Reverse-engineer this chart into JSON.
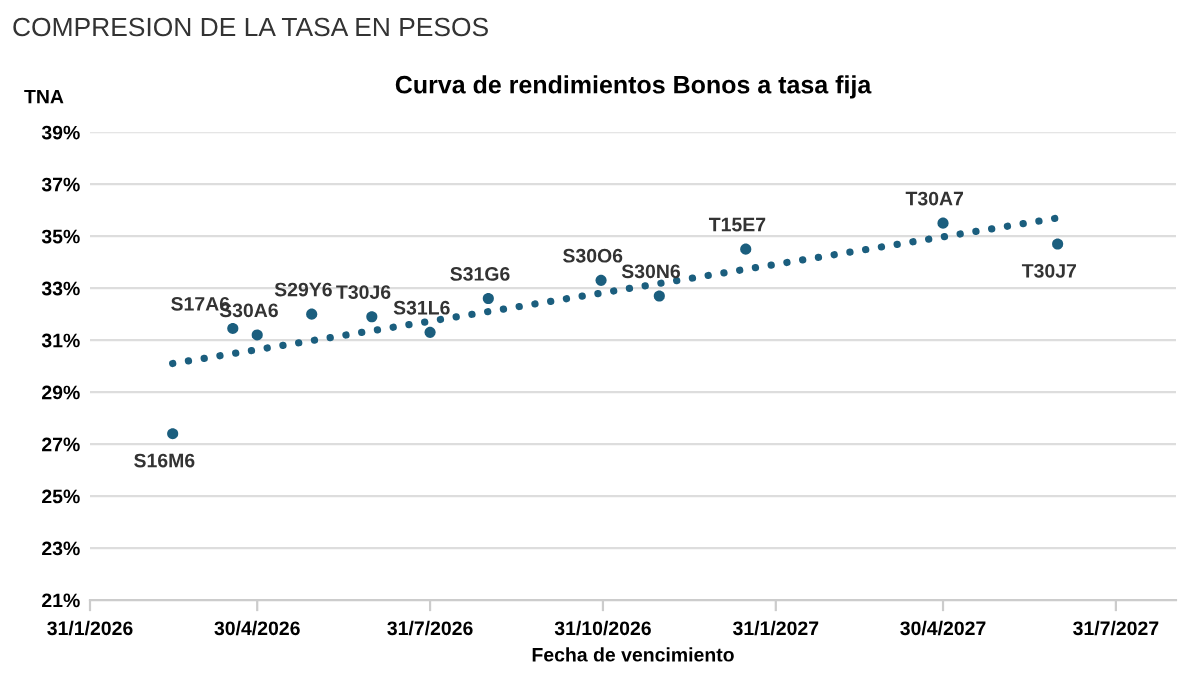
{
  "chart_data": {
    "type": "scatter",
    "title": "COMPRESION DE LA TASA EN PESOS",
    "subtitle": "Curva de rendimientos Bonos a tasa fija",
    "xlabel": "Fecha de vencimiento",
    "ylabel": "TNA",
    "series": [
      {
        "color": "#1b5e7e",
        "marker": "circle",
        "x": [
          "2026-03-16",
          "2026-04-17",
          "2026-04-30",
          "2026-05-29",
          "2026-06-30",
          "2026-07-31",
          "2026-08-31",
          "2026-10-30",
          "2026-11-30",
          "2027-01-15",
          "2027-04-30",
          "2027-06-30"
        ],
        "values": [
          27.4,
          31.45,
          31.2,
          32.0,
          31.9,
          31.3,
          32.6,
          33.3,
          32.7,
          34.5,
          35.5,
          34.7
        ]
      },
      {
        "type": "line",
        "color": "#1b5e7e",
        "line_style": "dotted",
        "marker": "none",
        "x": [
          "2026-03-16",
          "2027-06-30"
        ],
        "values": [
          30.1,
          35.7
        ]
      }
    ],
    "annotations": [
      {
        "text": "S16M6",
        "x": "2026-03-16",
        "y": 27.4
      },
      {
        "text": "S17A6",
        "x": "2026-04-17",
        "y": 31.45
      },
      {
        "text": "S30A6",
        "x": "2026-04-30",
        "y": 31.2
      },
      {
        "text": "S29Y6",
        "x": "2026-05-29",
        "y": 32.0
      },
      {
        "text": "T30J6",
        "x": "2026-06-30",
        "y": 31.9
      },
      {
        "text": "S31L6",
        "x": "2026-07-31",
        "y": 31.3
      },
      {
        "text": "S31G6",
        "x": "2026-08-31",
        "y": 32.6
      },
      {
        "text": "S30O6",
        "x": "2026-10-30",
        "y": 33.3
      },
      {
        "text": "S30N6",
        "x": "2026-11-30",
        "y": 32.7
      },
      {
        "text": "T15E7",
        "x": "2027-01-15",
        "y": 34.5
      },
      {
        "text": "T30A7",
        "x": "2027-04-30",
        "y": 35.5
      },
      {
        "text": "T30J7",
        "x": "2027-06-30",
        "y": 34.7
      }
    ],
    "xlim": [
      "2026-01-31",
      "2027-09-01"
    ],
    "xticks": [
      {
        "value": "2026-01-31",
        "label": "31/1/2026"
      },
      {
        "value": "2026-04-30",
        "label": "30/4/2026"
      },
      {
        "value": "2026-07-31",
        "label": "31/7/2026"
      },
      {
        "value": "2026-10-31",
        "label": "31/10/2026"
      },
      {
        "value": "2027-01-31",
        "label": "31/1/2027"
      },
      {
        "value": "2027-04-30",
        "label": "30/4/2027"
      },
      {
        "value": "2027-07-31",
        "label": "31/7/2027"
      }
    ],
    "ylim": [
      21,
      39
    ],
    "yticks": [
      {
        "value": 21,
        "label": "21%"
      },
      {
        "value": 23,
        "label": "23%"
      },
      {
        "value": 25,
        "label": "25%"
      },
      {
        "value": 27,
        "label": "27%"
      },
      {
        "value": 29,
        "label": "29%"
      },
      {
        "value": 31,
        "label": "31%"
      },
      {
        "value": 33,
        "label": "33%"
      },
      {
        "value": 35,
        "label": "35%"
      },
      {
        "value": 37,
        "label": "37%"
      },
      {
        "value": 39,
        "label": "39%"
      }
    ],
    "grid": "y",
    "legend": false
  }
}
